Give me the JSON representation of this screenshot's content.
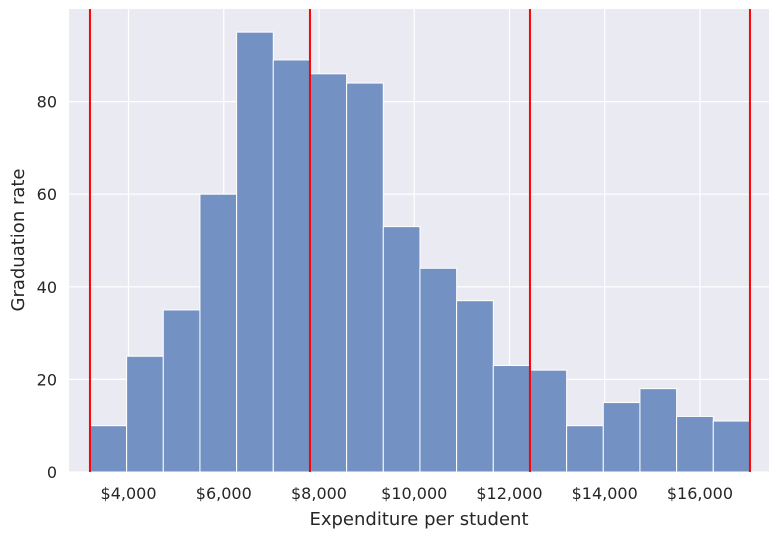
{
  "chart_data": {
    "type": "bar",
    "subtype": "histogram",
    "xlabel": "Expenditure per student",
    "ylabel": "Graduation rate",
    "xlim": [
      2750,
      17450
    ],
    "ylim": [
      0,
      100
    ],
    "x_ticks": [
      {
        "value": 4000,
        "label": "$4,000"
      },
      {
        "value": 6000,
        "label": "$6,000"
      },
      {
        "value": 8000,
        "label": "$8,000"
      },
      {
        "value": 10000,
        "label": "$10,000"
      },
      {
        "value": 12000,
        "label": "$12,000"
      },
      {
        "value": 14000,
        "label": "$14,000"
      },
      {
        "value": 16000,
        "label": "$16,000"
      }
    ],
    "y_ticks": [
      {
        "value": 0,
        "label": "0"
      },
      {
        "value": 20,
        "label": "20"
      },
      {
        "value": 40,
        "label": "40"
      },
      {
        "value": 60,
        "label": "60"
      },
      {
        "value": 80,
        "label": "80"
      }
    ],
    "bins": [
      {
        "start": 3190,
        "end": 3960,
        "count": 10
      },
      {
        "start": 3960,
        "end": 4730,
        "count": 25
      },
      {
        "start": 4730,
        "end": 5500,
        "count": 35
      },
      {
        "start": 5500,
        "end": 6270,
        "count": 60
      },
      {
        "start": 6270,
        "end": 7040,
        "count": 95
      },
      {
        "start": 7040,
        "end": 7810,
        "count": 89
      },
      {
        "start": 7810,
        "end": 8580,
        "count": 86
      },
      {
        "start": 8580,
        "end": 9350,
        "count": 84
      },
      {
        "start": 9350,
        "end": 10120,
        "count": 53
      },
      {
        "start": 10120,
        "end": 10890,
        "count": 44
      },
      {
        "start": 10890,
        "end": 11660,
        "count": 37
      },
      {
        "start": 11660,
        "end": 12430,
        "count": 23
      },
      {
        "start": 12430,
        "end": 13200,
        "count": 22
      },
      {
        "start": 13200,
        "end": 13970,
        "count": 10
      },
      {
        "start": 13970,
        "end": 14740,
        "count": 15
      },
      {
        "start": 14740,
        "end": 15510,
        "count": 18
      },
      {
        "start": 15510,
        "end": 16280,
        "count": 12
      },
      {
        "start": 16280,
        "end": 17050,
        "count": 11
      }
    ],
    "vertical_lines": [
      3190,
      7810,
      12430,
      17050
    ],
    "bar_color": "#7391c2",
    "bar_edge_color": "#ffffff",
    "line_color": "#ff0000",
    "background_color": "#eaeaf2",
    "grid": true,
    "grid_color": "#ffffff"
  }
}
